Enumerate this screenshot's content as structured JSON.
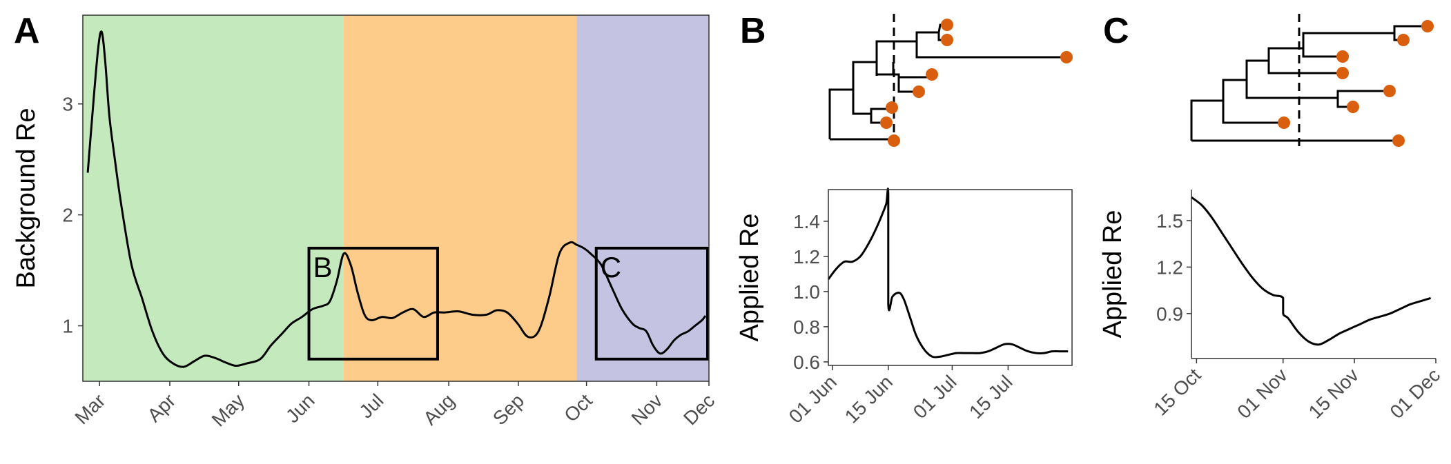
{
  "panel_tags": {
    "a": "A",
    "b": "B",
    "c": "C"
  },
  "colors": {
    "green": "#c3e9bd",
    "orange": "#fdcc8a",
    "purple": "#c4c4e2",
    "tip": "#d95f0e",
    "line": "#000000"
  },
  "chart_data": [
    {
      "id": "A",
      "type": "line",
      "title": "",
      "xlabel": "",
      "ylabel": "Background Re",
      "xlim": [
        0,
        9.0
      ],
      "ylim": [
        0.5,
        3.8
      ],
      "x_tick_labels": [
        "Mar",
        "Apr",
        "May",
        "Jun",
        "Jul",
        "Aug",
        "Sep",
        "Oct",
        "Nov",
        "Dec"
      ],
      "x_tick_positions": [
        0.24,
        1.25,
        2.24,
        3.25,
        4.24,
        5.26,
        6.26,
        7.24,
        8.25,
        9.0
      ],
      "y_ticks": [
        1,
        2,
        3
      ],
      "shaded_periods": [
        {
          "from": 0,
          "to": 3.75,
          "color": "#c3e9bd"
        },
        {
          "from": 3.75,
          "to": 7.1,
          "color": "#fdcc8a"
        },
        {
          "from": 7.1,
          "to": 9.0,
          "color": "#c4c4e2"
        }
      ],
      "inset_boxes": [
        {
          "label": "B",
          "x0": 3.25,
          "x1": 5.1,
          "y0": 0.7,
          "y1": 1.7
        },
        {
          "label": "C",
          "x0": 7.38,
          "x1": 8.98,
          "y0": 0.7,
          "y1": 1.7
        }
      ],
      "series": [
        {
          "x": [
            0.07,
            0.15,
            0.22,
            0.27,
            0.32,
            0.38,
            0.45,
            0.55,
            0.7,
            0.85,
            1.0,
            1.15,
            1.3,
            1.45,
            1.6,
            1.75,
            1.9,
            2.05,
            2.2,
            2.35,
            2.55,
            2.7,
            2.85,
            3.0,
            3.15,
            3.3,
            3.45,
            3.55,
            3.65,
            3.75,
            3.85,
            3.95,
            4.05,
            4.15,
            4.3,
            4.45,
            4.6,
            4.75,
            4.9,
            5.05,
            5.2,
            5.4,
            5.6,
            5.8,
            5.95,
            6.1,
            6.25,
            6.4,
            6.55,
            6.7,
            6.85,
            7.0,
            7.1,
            7.2,
            7.3,
            7.45,
            7.6,
            7.75,
            7.9,
            8.0,
            8.1,
            8.2,
            8.3,
            8.4,
            8.5,
            8.6,
            8.7,
            8.8,
            8.9,
            8.95
          ],
          "y": [
            2.38,
            3.0,
            3.5,
            3.65,
            3.4,
            2.9,
            2.55,
            2.1,
            1.55,
            1.25,
            0.95,
            0.75,
            0.66,
            0.63,
            0.68,
            0.73,
            0.71,
            0.67,
            0.64,
            0.66,
            0.7,
            0.82,
            0.92,
            1.02,
            1.08,
            1.15,
            1.18,
            1.22,
            1.4,
            1.65,
            1.55,
            1.3,
            1.1,
            1.05,
            1.08,
            1.07,
            1.12,
            1.15,
            1.08,
            1.12,
            1.12,
            1.13,
            1.1,
            1.1,
            1.14,
            1.12,
            1.02,
            0.9,
            0.95,
            1.25,
            1.65,
            1.75,
            1.73,
            1.7,
            1.65,
            1.55,
            1.35,
            1.15,
            1.02,
            0.98,
            0.95,
            0.82,
            0.75,
            0.79,
            0.87,
            0.92,
            0.95,
            1.0,
            1.05,
            1.09
          ]
        }
      ]
    },
    {
      "id": "B-bottom",
      "type": "line",
      "title": "",
      "xlabel": "",
      "ylabel": "Applied Re",
      "xlim": [
        -1,
        60
      ],
      "ylim": [
        0.58,
        1.58
      ],
      "x_tick_labels": [
        "01 Jun",
        "15 Jun",
        "01 Jul",
        "15 Jul"
      ],
      "x_tick_positions": [
        0,
        14,
        30,
        44
      ],
      "y_ticks": [
        0.6,
        0.8,
        1.0,
        1.2,
        1.4
      ],
      "y_tick_labels": [
        "0.6",
        "0.8",
        "1.0",
        "1.2",
        "1.4"
      ],
      "series": [
        {
          "x": [
            -1,
            1,
            3,
            5,
            7,
            9,
            11,
            12.5,
            13.5,
            14,
            14,
            15,
            16,
            17,
            18,
            19.5,
            21,
            23,
            25,
            27,
            29,
            31,
            33,
            35,
            37,
            39,
            41,
            43,
            45,
            47,
            49,
            51,
            53,
            55,
            57,
            59
          ],
          "y": [
            1.07,
            1.13,
            1.17,
            1.17,
            1.2,
            1.27,
            1.36,
            1.44,
            1.5,
            1.55,
            0.93,
            0.97,
            0.99,
            0.99,
            0.95,
            0.85,
            0.75,
            0.67,
            0.63,
            0.63,
            0.64,
            0.65,
            0.65,
            0.65,
            0.65,
            0.66,
            0.68,
            0.7,
            0.7,
            0.68,
            0.66,
            0.65,
            0.65,
            0.66,
            0.66,
            0.66
          ]
        }
      ]
    },
    {
      "id": "C-bottom",
      "type": "line",
      "title": "",
      "xlabel": "",
      "ylabel": "Applied Re",
      "xlim": [
        -18,
        30
      ],
      "ylim": [
        0.61,
        1.7
      ],
      "x_tick_labels": [
        "15 Oct",
        "01 Nov",
        "15 Nov",
        "01 Dec"
      ],
      "x_tick_positions": [
        -17,
        0,
        14,
        30
      ],
      "y_ticks": [
        0.9,
        1.2,
        1.5
      ],
      "y_tick_labels": [
        "0.9",
        "1.2",
        "1.5"
      ],
      "series": [
        {
          "x": [
            -18,
            -16,
            -14,
            -12,
            -10,
            -8,
            -6,
            -4,
            -2,
            0,
            0,
            1,
            3,
            5,
            7,
            9,
            11,
            13,
            15,
            17,
            19,
            21,
            23,
            25,
            27,
            29
          ],
          "y": [
            1.65,
            1.6,
            1.52,
            1.42,
            1.32,
            1.22,
            1.13,
            1.06,
            1.02,
            1.0,
            0.9,
            0.87,
            0.78,
            0.72,
            0.7,
            0.73,
            0.77,
            0.8,
            0.83,
            0.86,
            0.88,
            0.9,
            0.93,
            0.96,
            0.98,
            1.0
          ]
        }
      ]
    },
    {
      "id": "B-tree",
      "type": "diagram",
      "dashed_line_at": 0.63,
      "edges": [
        [
          [
            0.0,
            0.0
          ],
          [
            0.0,
            1.0
          ]
        ],
        [
          [
            0.0,
            1.0
          ],
          [
            0.63,
            1.0
          ]
        ],
        [
          [
            0.0,
            0.0
          ],
          [
            0.3,
            0.0
          ]
        ],
        [
          [
            0.3,
            -0.5
          ],
          [
            0.3,
            0.5
          ]
        ],
        [
          [
            0.3,
            -0.5
          ],
          [
            0.5,
            -0.5
          ]
        ],
        [
          [
            0.5,
            -0.8
          ],
          [
            0.5,
            -0.25
          ]
        ],
        [
          [
            0.5,
            -0.8
          ],
          [
            0.87,
            -0.8
          ]
        ],
        [
          [
            0.5,
            -0.25
          ],
          [
            1.35,
            -0.25
          ]
        ],
        [
          [
            0.5,
            0.65
          ],
          [
            0.55,
            0.65
          ]
        ],
        [
          [
            0.55,
            0.3
          ],
          [
            0.55,
            1.0
          ]
        ],
        [
          [
            0.3,
            0.5
          ],
          [
            0.6,
            0.5
          ]
        ],
        [
          [
            0.6,
            0.5
          ],
          [
            0.6,
            0.8
          ]
        ],
        [
          [
            0.6,
            0.8
          ],
          [
            0.63,
            0.8
          ]
        ],
        [
          [
            0.6,
            0.2
          ],
          [
            0.6,
            0.5
          ]
        ]
      ],
      "tips": []
    },
    {
      "id": "C-tree",
      "type": "diagram",
      "dashed_line_at": 0.5,
      "edges": [],
      "tips": []
    }
  ]
}
